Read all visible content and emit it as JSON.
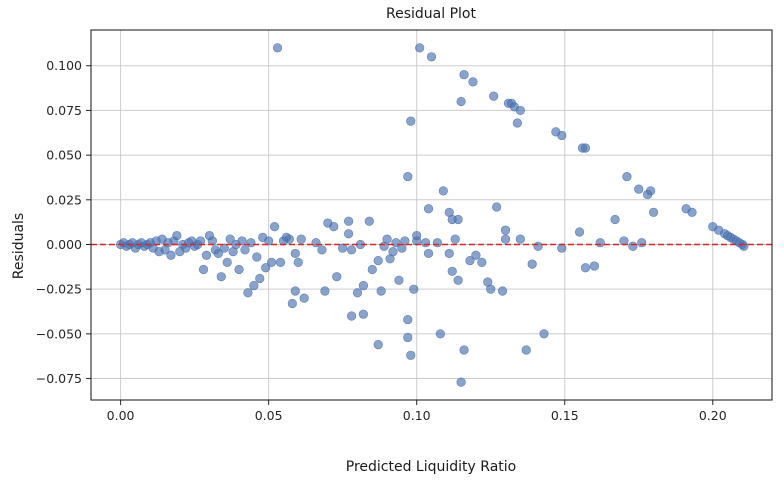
{
  "chart_data": {
    "type": "scatter",
    "title": "Residual Plot",
    "xlabel": "Predicted Liquidity Ratio",
    "ylabel": "Residuals",
    "xlim": [
      -0.01,
      0.22
    ],
    "ylim": [
      -0.087,
      0.12
    ],
    "xticks": [
      0.0,
      0.05,
      0.1,
      0.15,
      0.2
    ],
    "xtick_labels": [
      "0.00",
      "0.05",
      "0.10",
      "0.15",
      "0.20"
    ],
    "yticks": [
      -0.075,
      -0.05,
      -0.025,
      0.0,
      0.025,
      0.05,
      0.075,
      0.1
    ],
    "ytick_labels": [
      "−0.075",
      "−0.050",
      "−0.025",
      "0.000",
      "0.025",
      "0.050",
      "0.075",
      "0.100"
    ],
    "grid": true,
    "point_color": "#4c72b0",
    "reference_line": {
      "y": 0.0,
      "color": "#d62728",
      "style": "dashed"
    },
    "points": [
      [
        0.0,
        0.0
      ],
      [
        0.001,
        0.001
      ],
      [
        0.002,
        -0.001
      ],
      [
        0.003,
        0.0
      ],
      [
        0.004,
        0.001
      ],
      [
        0.005,
        -0.002
      ],
      [
        0.006,
        0.0
      ],
      [
        0.007,
        0.001
      ],
      [
        0.008,
        -0.001
      ],
      [
        0.009,
        0.0
      ],
      [
        0.01,
        0.001
      ],
      [
        0.011,
        -0.002
      ],
      [
        0.012,
        0.002
      ],
      [
        0.013,
        -0.004
      ],
      [
        0.014,
        0.003
      ],
      [
        0.015,
        -0.003
      ],
      [
        0.016,
        0.001
      ],
      [
        0.017,
        -0.006
      ],
      [
        0.018,
        0.002
      ],
      [
        0.019,
        0.005
      ],
      [
        0.02,
        -0.004
      ],
      [
        0.021,
        0.0
      ],
      [
        0.022,
        -0.002
      ],
      [
        0.023,
        0.001
      ],
      [
        0.024,
        0.002
      ],
      [
        0.025,
        -0.001
      ],
      [
        0.026,
        0.0
      ],
      [
        0.027,
        0.002
      ],
      [
        0.028,
        -0.014
      ],
      [
        0.029,
        -0.006
      ],
      [
        0.03,
        0.005
      ],
      [
        0.031,
        0.002
      ],
      [
        0.032,
        -0.003
      ],
      [
        0.033,
        -0.005
      ],
      [
        0.034,
        -0.018
      ],
      [
        0.035,
        -0.002
      ],
      [
        0.036,
        -0.01
      ],
      [
        0.037,
        0.003
      ],
      [
        0.038,
        -0.004
      ],
      [
        0.039,
        0.0
      ],
      [
        0.04,
        -0.014
      ],
      [
        0.041,
        0.002
      ],
      [
        0.042,
        -0.003
      ],
      [
        0.043,
        -0.027
      ],
      [
        0.044,
        0.001
      ],
      [
        0.045,
        -0.023
      ],
      [
        0.046,
        -0.007
      ],
      [
        0.047,
        -0.019
      ],
      [
        0.048,
        0.004
      ],
      [
        0.049,
        -0.013
      ],
      [
        0.05,
        0.002
      ],
      [
        0.051,
        -0.01
      ],
      [
        0.052,
        0.01
      ],
      [
        0.053,
        0.11
      ],
      [
        0.054,
        -0.01
      ],
      [
        0.055,
        0.002
      ],
      [
        0.056,
        0.004
      ],
      [
        0.057,
        0.003
      ],
      [
        0.058,
        -0.033
      ],
      [
        0.059,
        -0.005
      ],
      [
        0.059,
        -0.026
      ],
      [
        0.06,
        -0.01
      ],
      [
        0.061,
        0.003
      ],
      [
        0.062,
        -0.03
      ],
      [
        0.066,
        0.001
      ],
      [
        0.068,
        -0.003
      ],
      [
        0.069,
        -0.026
      ],
      [
        0.07,
        0.012
      ],
      [
        0.072,
        0.01
      ],
      [
        0.073,
        -0.018
      ],
      [
        0.075,
        -0.002
      ],
      [
        0.077,
        0.013
      ],
      [
        0.077,
        0.006
      ],
      [
        0.078,
        -0.04
      ],
      [
        0.078,
        -0.003
      ],
      [
        0.08,
        -0.027
      ],
      [
        0.081,
        0.0
      ],
      [
        0.082,
        -0.039
      ],
      [
        0.082,
        -0.023
      ],
      [
        0.084,
        0.013
      ],
      [
        0.085,
        -0.014
      ],
      [
        0.087,
        -0.056
      ],
      [
        0.087,
        -0.009
      ],
      [
        0.088,
        -0.026
      ],
      [
        0.089,
        -0.001
      ],
      [
        0.09,
        0.003
      ],
      [
        0.091,
        -0.008
      ],
      [
        0.092,
        -0.004
      ],
      [
        0.093,
        0.001
      ],
      [
        0.094,
        -0.02
      ],
      [
        0.095,
        -0.002
      ],
      [
        0.096,
        0.002
      ],
      [
        0.097,
        -0.052
      ],
      [
        0.097,
        0.038
      ],
      [
        0.097,
        -0.042
      ],
      [
        0.098,
        0.069
      ],
      [
        0.098,
        -0.062
      ],
      [
        0.099,
        -0.025
      ],
      [
        0.1,
        0.005
      ],
      [
        0.1,
        0.002
      ],
      [
        0.101,
        0.11
      ],
      [
        0.103,
        0.001
      ],
      [
        0.104,
        0.02
      ],
      [
        0.104,
        -0.005
      ],
      [
        0.105,
        0.105
      ],
      [
        0.107,
        0.001
      ],
      [
        0.108,
        -0.05
      ],
      [
        0.109,
        0.03
      ],
      [
        0.111,
        0.018
      ],
      [
        0.111,
        -0.005
      ],
      [
        0.112,
        -0.015
      ],
      [
        0.112,
        0.014
      ],
      [
        0.113,
        0.003
      ],
      [
        0.114,
        -0.02
      ],
      [
        0.114,
        0.014
      ],
      [
        0.115,
        0.08
      ],
      [
        0.115,
        -0.077
      ],
      [
        0.116,
        0.095
      ],
      [
        0.116,
        -0.059
      ],
      [
        0.118,
        -0.009
      ],
      [
        0.119,
        0.091
      ],
      [
        0.12,
        -0.006
      ],
      [
        0.122,
        -0.01
      ],
      [
        0.124,
        -0.021
      ],
      [
        0.125,
        -0.025
      ],
      [
        0.126,
        0.083
      ],
      [
        0.127,
        0.021
      ],
      [
        0.129,
        -0.026
      ],
      [
        0.13,
        0.003
      ],
      [
        0.13,
        0.008
      ],
      [
        0.131,
        0.079
      ],
      [
        0.132,
        0.079
      ],
      [
        0.133,
        0.077
      ],
      [
        0.134,
        0.068
      ],
      [
        0.135,
        0.075
      ],
      [
        0.135,
        0.003
      ],
      [
        0.137,
        -0.059
      ],
      [
        0.139,
        -0.011
      ],
      [
        0.141,
        -0.001
      ],
      [
        0.143,
        -0.05
      ],
      [
        0.147,
        0.063
      ],
      [
        0.149,
        0.061
      ],
      [
        0.149,
        -0.002
      ],
      [
        0.155,
        0.007
      ],
      [
        0.156,
        0.054
      ],
      [
        0.157,
        0.054
      ],
      [
        0.157,
        -0.013
      ],
      [
        0.16,
        -0.012
      ],
      [
        0.162,
        0.001
      ],
      [
        0.167,
        0.014
      ],
      [
        0.17,
        0.002
      ],
      [
        0.171,
        0.038
      ],
      [
        0.173,
        -0.001
      ],
      [
        0.175,
        0.031
      ],
      [
        0.176,
        0.001
      ],
      [
        0.178,
        0.028
      ],
      [
        0.179,
        0.03
      ],
      [
        0.18,
        0.018
      ],
      [
        0.191,
        0.02
      ],
      [
        0.193,
        0.018
      ],
      [
        0.2,
        0.01
      ],
      [
        0.202,
        0.008
      ],
      [
        0.204,
        0.006
      ],
      [
        0.205,
        0.005
      ],
      [
        0.206,
        0.004
      ],
      [
        0.207,
        0.003
      ],
      [
        0.208,
        0.002
      ],
      [
        0.209,
        0.001
      ],
      [
        0.21,
        0.0
      ],
      [
        0.2105,
        -0.001
      ]
    ]
  }
}
